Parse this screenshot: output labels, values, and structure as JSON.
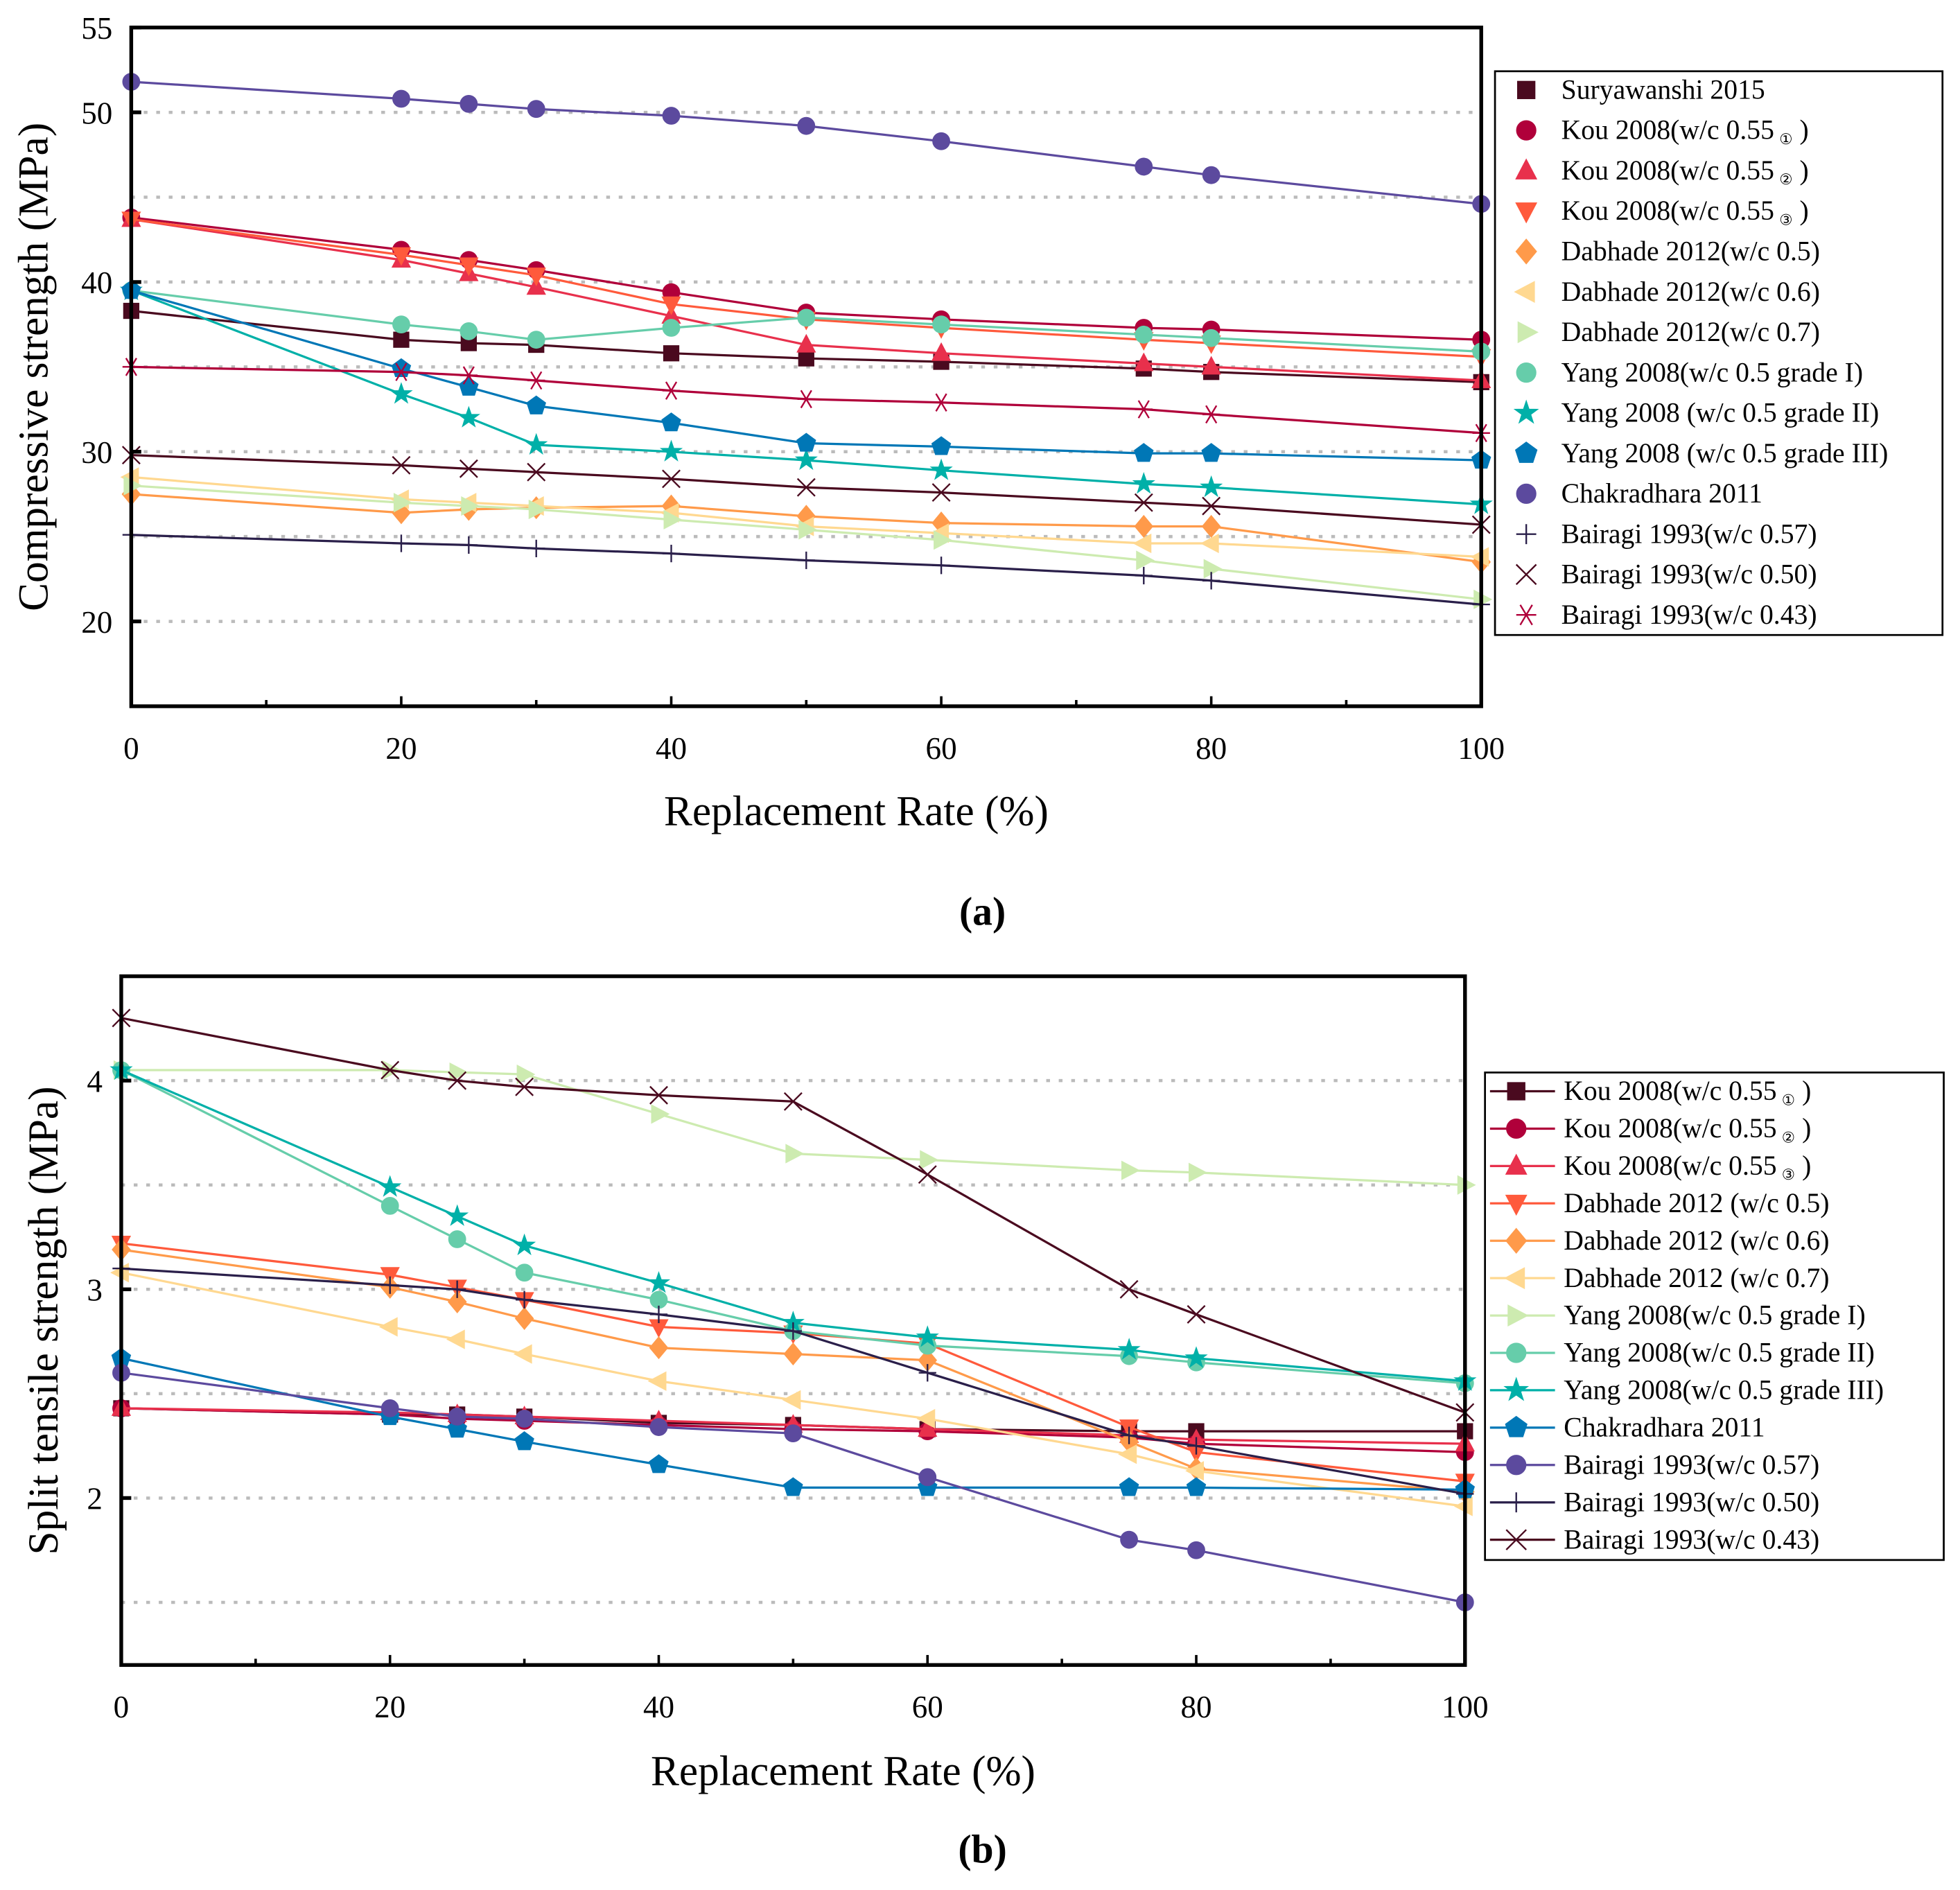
{
  "chart_data": [
    {
      "type": "line",
      "panel_label": "(a)",
      "xlabel": "Replacement Rate (%)",
      "ylabel": "Compressive strength (MPa)",
      "xlim": [
        0,
        100
      ],
      "ylim": [
        15,
        55
      ],
      "xticks": [
        0,
        20,
        40,
        60,
        80,
        100
      ],
      "yticks": [
        20,
        30,
        40,
        50,
        55
      ],
      "gridlines_y": [
        20,
        25,
        30,
        35,
        40,
        45,
        50
      ],
      "grid": "horizontal dotted",
      "legend_position": "right",
      "x": [
        0,
        20,
        25,
        30,
        40,
        50,
        60,
        75,
        80,
        100
      ],
      "series": [
        {
          "name": "Suryawanshi 2015",
          "color": "#4a0a1f",
          "marker": "square",
          "values": [
            38.3,
            36.6,
            36.4,
            36.3,
            35.8,
            35.5,
            35.3,
            34.9,
            34.7,
            34.1
          ]
        },
        {
          "name": "Kou 2008(w/c 0.55",
          "sub": "①",
          "color": "#b0003a",
          "marker": "circle",
          "values": [
            43.8,
            41.9,
            41.3,
            40.7,
            39.4,
            38.2,
            37.8,
            37.3,
            37.2,
            36.6
          ]
        },
        {
          "name": "Kou 2008(w/c 0.55",
          "sub": "②",
          "color": "#e8304c",
          "marker": "triangle-up",
          "values": [
            43.7,
            41.3,
            40.5,
            39.7,
            38.0,
            36.3,
            35.8,
            35.2,
            35.0,
            34.2
          ]
        },
        {
          "name": "Kou 2008(w/c 0.55",
          "sub": "③",
          "color": "#ff5a3c",
          "marker": "triangle-down",
          "values": [
            43.7,
            41.6,
            41.0,
            40.4,
            38.7,
            37.8,
            37.3,
            36.6,
            36.4,
            35.6
          ]
        },
        {
          "name": "Dabhade 2012(w/c 0.5)",
          "color": "#ff9a4a",
          "marker": "diamond",
          "values": [
            27.5,
            26.4,
            26.6,
            26.7,
            26.8,
            26.2,
            25.8,
            25.6,
            25.6,
            23.5
          ]
        },
        {
          "name": "Dabhade 2012(w/c 0.6)",
          "color": "#ffd890",
          "marker": "triangle-left",
          "values": [
            28.5,
            27.2,
            27.0,
            26.8,
            26.4,
            25.6,
            25.2,
            24.6,
            24.6,
            23.8
          ]
        },
        {
          "name": "Dabhade 2012(w/c 0.7)",
          "color": "#cdebb0",
          "marker": "triangle-right",
          "values": [
            28.0,
            27.0,
            26.8,
            26.6,
            26.0,
            25.4,
            24.8,
            23.6,
            23.1,
            21.3
          ]
        },
        {
          "name": "Yang 2008(w/c 0.5  grade I)",
          "color": "#66cdaa",
          "marker": "circle",
          "values": [
            39.5,
            37.5,
            37.1,
            36.6,
            37.3,
            37.9,
            37.5,
            36.9,
            36.7,
            35.9
          ]
        },
        {
          "name": "Yang 2008 (w/c 0.5  grade II)",
          "color": "#00b0a8",
          "marker": "star",
          "values": [
            39.5,
            33.4,
            32.0,
            30.4,
            30.0,
            29.5,
            28.9,
            28.1,
            27.9,
            26.9
          ]
        },
        {
          "name": "Yang 2008 (w/c 0.5  grade III)",
          "color": "#0077b6",
          "marker": "pentagon",
          "values": [
            39.5,
            34.9,
            33.8,
            32.7,
            31.7,
            30.5,
            30.3,
            29.9,
            29.9,
            29.5
          ]
        },
        {
          "name": "Chakradhara 2011",
          "color": "#5c4a9e",
          "marker": "circle",
          "values": [
            51.8,
            50.8,
            50.5,
            50.2,
            49.8,
            49.2,
            48.3,
            46.8,
            46.3,
            44.6
          ]
        },
        {
          "name": "Bairagi 1993(w/c 0.57)",
          "color": "#2a1f4a",
          "marker": "plus",
          "values": [
            25.1,
            24.6,
            24.5,
            24.3,
            24.0,
            23.6,
            23.3,
            22.7,
            22.4,
            21.0
          ]
        },
        {
          "name": "Bairagi 1993(w/c 0.50)",
          "color": "#4a0a1f",
          "marker": "x",
          "values": [
            29.8,
            29.2,
            29.0,
            28.8,
            28.4,
            27.9,
            27.6,
            27.0,
            26.8,
            25.7
          ]
        },
        {
          "name": "Bairagi 1993(w/c 0.43)",
          "color": "#b0003a",
          "marker": "asterisk",
          "values": [
            35.0,
            34.7,
            34.5,
            34.2,
            33.6,
            33.1,
            32.9,
            32.5,
            32.2,
            31.1
          ]
        }
      ]
    },
    {
      "type": "line",
      "panel_label": "(b)",
      "xlabel": "Replacement Rate (%)",
      "ylabel": "Split tensile strength (MPa)",
      "xlim": [
        0,
        100
      ],
      "ylim": [
        1.2,
        4.5
      ],
      "xticks": [
        0,
        20,
        40,
        60,
        80,
        100
      ],
      "yticks": [
        2,
        3,
        4
      ],
      "gridlines_y": [
        1.5,
        2,
        2.5,
        3,
        3.5,
        4
      ],
      "grid": "horizontal dotted",
      "legend_position": "right",
      "x": [
        0,
        20,
        25,
        30,
        40,
        50,
        60,
        75,
        80,
        100
      ],
      "series": [
        {
          "name": "Kou 2008(w/c 0.55",
          "sub": "①",
          "color": "#4a0a1f",
          "marker": "square",
          "values": [
            2.43,
            2.4,
            2.4,
            2.39,
            2.36,
            2.35,
            2.33,
            2.32,
            2.32,
            2.32
          ]
        },
        {
          "name": "Kou 2008(w/c 0.55",
          "sub": "②",
          "color": "#b0003a",
          "marker": "circle",
          "values": [
            2.43,
            2.4,
            2.38,
            2.37,
            2.35,
            2.33,
            2.32,
            2.29,
            2.26,
            2.22
          ]
        },
        {
          "name": "Kou 2008(w/c 0.55",
          "sub": "③",
          "color": "#e8304c",
          "marker": "triangle-up",
          "values": [
            2.43,
            2.41,
            2.4,
            2.39,
            2.37,
            2.35,
            2.33,
            2.3,
            2.28,
            2.26
          ]
        },
        {
          "name": "Dabhade 2012 (w/c 0.5)",
          "color": "#ff5a3c",
          "marker": "triangle-down",
          "values": [
            3.22,
            3.07,
            3.01,
            2.95,
            2.82,
            2.79,
            2.74,
            2.34,
            2.22,
            2.08
          ]
        },
        {
          "name": "Dabhade 2012 (w/c 0.6)",
          "color": "#ff9a4a",
          "marker": "diamond",
          "values": [
            3.19,
            3.01,
            2.94,
            2.86,
            2.72,
            2.69,
            2.66,
            2.27,
            2.14,
            2.03
          ]
        },
        {
          "name": "Dabhade 2012 (w/c 0.7)",
          "color": "#ffd890",
          "marker": "triangle-left",
          "values": [
            3.08,
            2.82,
            2.76,
            2.69,
            2.56,
            2.47,
            2.38,
            2.21,
            2.13,
            1.96
          ]
        },
        {
          "name": "Yang 2008(w/c 0.5  grade I)",
          "color": "#cdebb0",
          "marker": "triangle-right",
          "values": [
            4.05,
            4.05,
            4.04,
            4.03,
            3.84,
            3.65,
            3.62,
            3.57,
            3.56,
            3.5
          ]
        },
        {
          "name": "Yang 2008(w/c 0.5  grade II)",
          "color": "#66cdaa",
          "marker": "circle",
          "values": [
            4.05,
            3.4,
            3.24,
            3.08,
            2.95,
            2.8,
            2.73,
            2.68,
            2.65,
            2.55
          ]
        },
        {
          "name": "Yang 2008(w/c 0.5  grade III)",
          "color": "#00b0a8",
          "marker": "star",
          "values": [
            4.05,
            3.49,
            3.35,
            3.21,
            3.03,
            2.84,
            2.77,
            2.71,
            2.67,
            2.56
          ]
        },
        {
          "name": "Chakradhara 2011",
          "color": "#0077b6",
          "marker": "pentagon",
          "values": [
            2.67,
            2.39,
            2.33,
            2.27,
            2.16,
            2.05,
            2.05,
            2.05,
            2.05,
            2.04
          ]
        },
        {
          "name": "Bairagi 1993(w/c 0.57)",
          "color": "#5c4a9e",
          "marker": "circle",
          "values": [
            2.6,
            2.43,
            2.39,
            2.38,
            2.34,
            2.31,
            2.1,
            1.8,
            1.75,
            1.5
          ]
        },
        {
          "name": "Bairagi 1993(w/c 0.50)",
          "color": "#2a1f4a",
          "marker": "plus",
          "values": [
            3.1,
            3.02,
            3.0,
            2.95,
            2.88,
            2.8,
            2.6,
            2.3,
            2.25,
            2.02
          ]
        },
        {
          "name": "Bairagi 1993(w/c 0.43)",
          "color": "#4a0a1f",
          "marker": "x",
          "values": [
            4.3,
            4.05,
            4.0,
            3.97,
            3.93,
            3.9,
            3.55,
            3.0,
            2.88,
            2.41
          ]
        }
      ]
    }
  ]
}
